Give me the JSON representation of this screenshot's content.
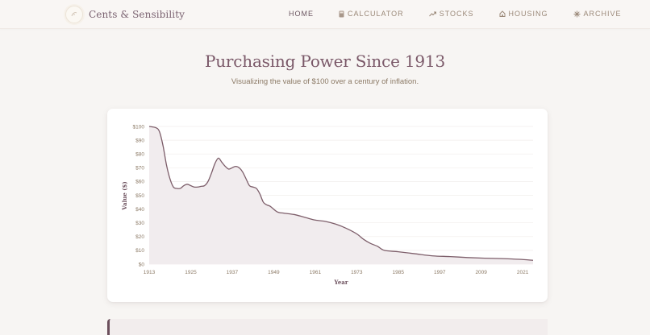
{
  "header": {
    "brand": "Cents & Sensibility",
    "nav": [
      {
        "label": "HOME",
        "icon": "none",
        "active": true
      },
      {
        "label": "CALCULATOR",
        "icon": "calculator-icon",
        "active": false
      },
      {
        "label": "STOCKS",
        "icon": "trending-up-icon",
        "active": false
      },
      {
        "label": "HOUSING",
        "icon": "home-icon",
        "active": false
      },
      {
        "label": "ARCHIVE",
        "icon": "sparkle-icon",
        "active": false
      }
    ]
  },
  "hero": {
    "title": "Purchasing Power Since 1913",
    "subtitle": "Visualizing the value of $100 over a century of inflation."
  },
  "colors": {
    "accent": "#6b4f5c",
    "line": "#7d5e6a",
    "fill": "#f1ecee",
    "grid": "#f1eeeb",
    "tick": "#8c7a66",
    "background": "#f7f5f3"
  },
  "chart_data": {
    "type": "area",
    "title": "",
    "xlabel": "Year",
    "ylabel": "Value ($)",
    "ylim": [
      0,
      100
    ],
    "xlim": [
      1913,
      2024
    ],
    "grid": true,
    "legend": "none",
    "y_ticks": [
      "$0",
      "$10",
      "$20",
      "$30",
      "$40",
      "$50",
      "$60",
      "$70",
      "$80",
      "$90",
      "$100"
    ],
    "x_ticks": [
      "1913",
      "1925",
      "1937",
      "1949",
      "1961",
      "1973",
      "1985",
      "1997",
      "2009",
      "2021"
    ],
    "x": [
      1913,
      1915,
      1916,
      1917,
      1918,
      1919,
      1920,
      1921,
      1922,
      1923,
      1924,
      1925,
      1926,
      1927,
      1928,
      1929,
      1930,
      1931,
      1932,
      1933,
      1934,
      1935,
      1936,
      1937,
      1938,
      1939,
      1940,
      1941,
      1942,
      1943,
      1944,
      1945,
      1946,
      1947,
      1948,
      1950,
      1952,
      1955,
      1958,
      1961,
      1964,
      1967,
      1970,
      1973,
      1975,
      1977,
      1979,
      1981,
      1985,
      1990,
      1995,
      2000,
      2005,
      2010,
      2015,
      2020,
      2024
    ],
    "series": [
      {
        "name": "Value of $100",
        "values": [
          100,
          99,
          96,
          86,
          72,
          62,
          56,
          55,
          55,
          57,
          58,
          57,
          56,
          56,
          56.5,
          57,
          60,
          66,
          73,
          77,
          74,
          71,
          69,
          70,
          71,
          70,
          67,
          62,
          57,
          56,
          55,
          51,
          45,
          43,
          42,
          38,
          37,
          36,
          34,
          32,
          31,
          29,
          26,
          22,
          18,
          15,
          13,
          10,
          9,
          7.5,
          6,
          5.5,
          4.8,
          4.3,
          4,
          3.5,
          2.8
        ]
      }
    ]
  }
}
